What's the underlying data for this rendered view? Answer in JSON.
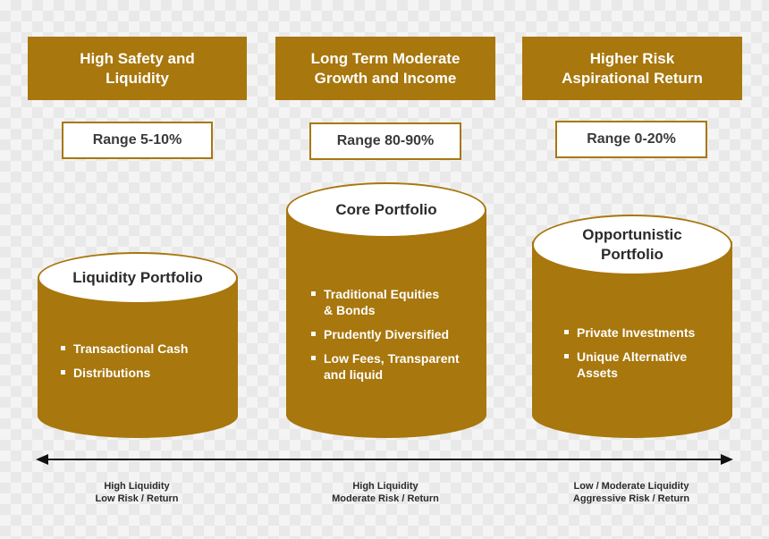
{
  "columns": [
    {
      "header": [
        "High Safety and",
        "Liquidity"
      ],
      "range": "Range 5-10%",
      "portfolio": [
        "Liquidity Portfolio"
      ],
      "bullets": [
        "Transactional Cash",
        "Distributions"
      ],
      "axis_label": [
        "High Liquidity",
        "Low Risk / Return"
      ]
    },
    {
      "header": [
        "Long Term Moderate",
        "Growth and Income"
      ],
      "range": "Range 80-90%",
      "portfolio": [
        "Core Portfolio"
      ],
      "bullets": [
        [
          "Traditional Equities",
          "& Bonds"
        ],
        [
          "Prudently Diversified"
        ],
        [
          "Low Fees, Transparent",
          "and liquid"
        ]
      ],
      "axis_label": [
        "High Liquidity",
        "Moderate Risk / Return"
      ]
    },
    {
      "header": [
        "Higher Risk",
        "Aspirational Return"
      ],
      "range": "Range 0-20%",
      "portfolio": [
        "Opportunistic",
        "Portfolio"
      ],
      "bullets": [
        [
          "Private Investments"
        ],
        [
          "Unique Alternative",
          "Assets"
        ]
      ],
      "axis_label": [
        "Low / Moderate Liquidity",
        "Aggressive Risk / Return"
      ]
    }
  ],
  "colors": {
    "accent": "#a8770d",
    "box_fill": "#ffffff",
    "text_dark": "#2b2b2b"
  },
  "icons": {
    "axis": "double-headed-arrow"
  }
}
